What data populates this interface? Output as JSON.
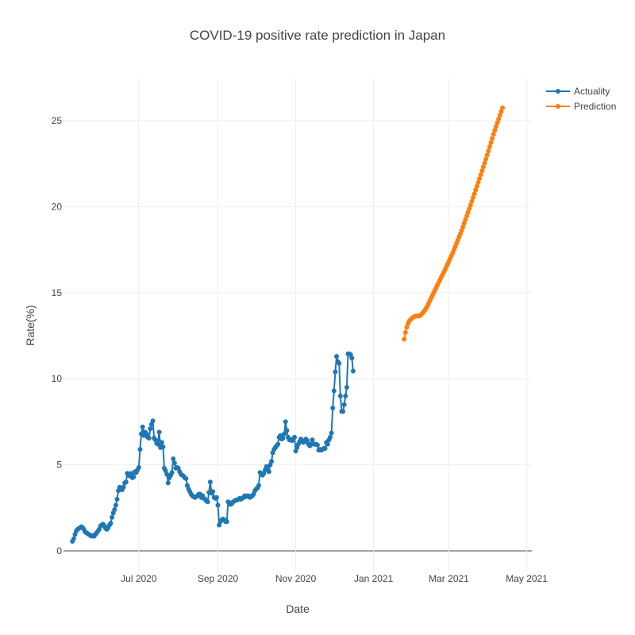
{
  "chart_data": {
    "type": "line",
    "title": "COVID-19 positive rate prediction in Japan",
    "xlabel": "Date",
    "ylabel": "Rate(%)",
    "x_range": [
      "2020-05-03",
      "2021-05-05"
    ],
    "y_range": [
      -1.2,
      27.4
    ],
    "x_ticks": [
      {
        "date": "2020-07-01",
        "label": "Jul 2020"
      },
      {
        "date": "2020-09-01",
        "label": "Sep 2020"
      },
      {
        "date": "2020-11-01",
        "label": "Nov 2020"
      },
      {
        "date": "2021-01-01",
        "label": "Jan 2021"
      },
      {
        "date": "2021-03-01",
        "label": "Mar 2021"
      },
      {
        "date": "2021-05-01",
        "label": "May 2021"
      }
    ],
    "y_ticks": [
      0,
      5,
      10,
      15,
      20,
      25
    ],
    "legend_position": "top-right",
    "series": [
      {
        "name": "Actuality",
        "color": "#1f77b4",
        "start_date": "2020-05-10",
        "step_days": 1,
        "values": [
          0.55,
          0.7,
          0.95,
          1.15,
          1.25,
          1.3,
          1.35,
          1.4,
          1.35,
          1.25,
          1.1,
          1.05,
          1.0,
          0.95,
          0.9,
          0.85,
          0.9,
          0.85,
          0.95,
          1.05,
          1.15,
          1.25,
          1.45,
          1.5,
          1.55,
          1.45,
          1.3,
          1.25,
          1.35,
          1.5,
          1.6,
          1.95,
          2.2,
          2.4,
          2.65,
          3.0,
          3.5,
          3.7,
          3.6,
          3.55,
          3.7,
          3.95,
          4.0,
          4.5,
          4.4,
          4.35,
          4.5,
          4.25,
          4.3,
          4.6,
          4.55,
          4.7,
          4.85,
          5.9,
          6.8,
          7.2,
          6.7,
          6.9,
          6.8,
          6.6,
          6.55,
          7.1,
          7.35,
          7.55,
          6.55,
          6.45,
          6.25,
          6.2,
          6.9,
          6.0,
          6.3,
          6.05,
          4.8,
          4.65,
          4.45,
          3.95,
          4.25,
          4.4,
          4.55,
          5.35,
          5.1,
          4.8,
          4.85,
          4.8,
          4.6,
          4.45,
          4.4,
          4.35,
          4.25,
          4.2,
          3.8,
          3.6,
          3.45,
          3.3,
          3.2,
          3.15,
          3.1,
          3.15,
          3.2,
          3.3,
          3.3,
          3.1,
          3.2,
          3.05,
          3.0,
          2.9,
          2.85,
          3.4,
          4.0,
          3.35,
          3.45,
          3.1,
          3.05,
          3.1,
          2.65,
          1.5,
          1.7,
          1.8,
          1.85,
          1.8,
          1.7,
          1.7,
          2.85,
          2.8,
          2.7,
          2.75,
          2.85,
          2.9,
          2.95,
          2.95,
          3.0,
          3.05,
          3.0,
          3.05,
          3.1,
          3.2,
          3.15,
          3.2,
          3.2,
          3.1,
          3.15,
          3.2,
          3.3,
          3.5,
          3.6,
          3.65,
          3.8,
          4.55,
          4.5,
          4.4,
          4.5,
          4.7,
          4.9,
          4.75,
          4.6,
          5.0,
          5.2,
          5.7,
          5.9,
          6.0,
          6.1,
          6.2,
          6.6,
          6.7,
          6.5,
          6.55,
          6.8,
          7.5,
          7.0,
          6.6,
          6.45,
          6.45,
          6.4,
          6.5,
          6.6,
          5.8,
          6.0,
          6.2,
          6.35,
          6.5,
          6.4,
          6.3,
          6.35,
          6.5,
          6.4,
          6.2,
          6.1,
          6.2,
          6.45,
          6.2,
          6.2,
          6.2,
          6.15,
          5.85,
          5.9,
          5.85,
          5.9,
          5.95,
          5.95,
          6.3,
          6.2,
          6.45,
          6.6,
          6.85,
          8.3,
          9.3,
          10.4,
          11.3,
          11.0,
          10.9,
          9.0,
          8.1,
          8.1,
          8.5,
          9.0,
          9.5,
          11.45,
          11.45,
          11.4,
          11.2,
          10.45
        ]
      },
      {
        "name": "Prediction",
        "color": "#ff7f0e",
        "start_date": "2021-01-25",
        "end_date": "2021-04-12",
        "curve": {
          "anchors": [
            [
              0,
              12.3
            ],
            [
              1,
              12.8
            ],
            [
              2,
              13.15
            ],
            [
              3,
              13.35
            ],
            [
              4,
              13.45
            ],
            [
              5,
              13.55
            ],
            [
              6,
              13.6
            ],
            [
              7,
              13.65
            ],
            [
              8,
              13.65
            ],
            [
              9,
              13.65
            ],
            [
              10,
              13.7
            ],
            [
              11,
              13.8
            ],
            [
              12,
              13.9
            ],
            [
              13,
              14.05
            ],
            [
              14,
              14.2
            ],
            [
              15,
              14.4
            ],
            [
              16,
              14.6
            ],
            [
              20,
              15.4
            ],
            [
              25,
              16.35
            ],
            [
              30,
              17.4
            ],
            [
              35,
              18.6
            ],
            [
              40,
              19.95
            ],
            [
              45,
              21.35
            ],
            [
              50,
              22.8
            ],
            [
              55,
              24.35
            ],
            [
              60,
              25.75
            ]
          ]
        }
      }
    ]
  }
}
